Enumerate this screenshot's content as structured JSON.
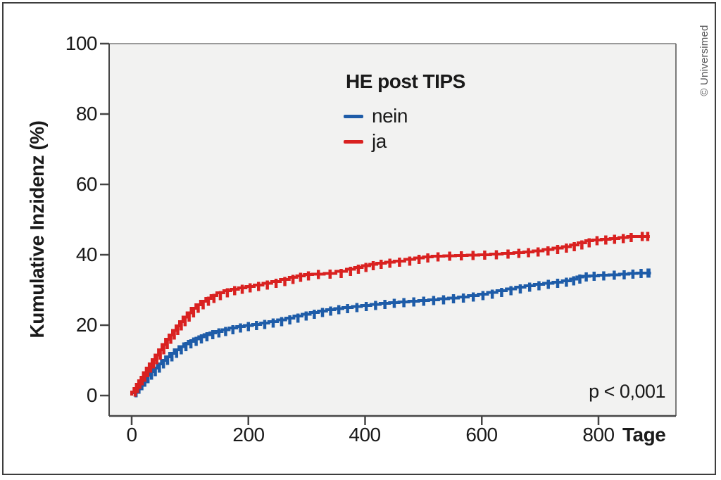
{
  "copyright": "© Universimed",
  "annotations": {
    "p_value": "p < 0,001"
  },
  "legend": {
    "title": "HE post TIPS",
    "items": [
      {
        "label": "nein",
        "color": "#1e5ca8"
      },
      {
        "label": "ja",
        "color": "#d92120"
      }
    ]
  },
  "chart_data": {
    "type": "line",
    "subtype": "kaplan-meier-cumulative-incidence",
    "title": "HE post TIPS",
    "xlabel": "Tage",
    "ylabel": "Kumulative Inzidenz (%)",
    "xlim": [
      0,
      930
    ],
    "ylim": [
      0,
      100
    ],
    "x_ticks": [
      "0",
      "200",
      "400",
      "600",
      "800"
    ],
    "x_tick_values": [
      0,
      200,
      400,
      600,
      800
    ],
    "y_ticks": [
      "100",
      "80",
      "60",
      "40",
      "20",
      "0"
    ],
    "y_tick_values": [
      100,
      80,
      60,
      40,
      20,
      0
    ],
    "grid": false,
    "legend_position": "inside-top-center",
    "plot_background": "#f2f2f1",
    "annotation": "p < 0,001",
    "series": [
      {
        "name": "nein",
        "color": "#1e5ca8",
        "censor_marks": true,
        "x": [
          0,
          5,
          10,
          15,
          20,
          25,
          31,
          37,
          44,
          51,
          58,
          65,
          73,
          81,
          89,
          97,
          106,
          115,
          124,
          134,
          144,
          155,
          167,
          180,
          193,
          207,
          221,
          235,
          250,
          264,
          278,
          292,
          306,
          320,
          334,
          348,
          362,
          378,
          394,
          410,
          426,
          442,
          458,
          475,
          492,
          509,
          526,
          543,
          560,
          577,
          594,
          610,
          626,
          642,
          658,
          674,
          690,
          706,
          722,
          738,
          752,
          763,
          773,
          785,
          800,
          818,
          836,
          852,
          866,
          880,
          890
        ],
        "y": [
          0,
          0.8,
          1.8,
          2.8,
          3.8,
          4.8,
          5.8,
          6.8,
          7.8,
          9,
          10,
          11,
          12,
          13,
          13.9,
          14.7,
          15.4,
          16.1,
          16.7,
          17.3,
          17.8,
          18.2,
          18.7,
          19.2,
          19.6,
          19.9,
          20.2,
          20.6,
          21,
          21.5,
          22,
          22.6,
          23.1,
          23.6,
          24,
          24.4,
          24.7,
          25,
          25.3,
          25.6,
          25.9,
          26.2,
          26.4,
          26.6,
          26.8,
          27,
          27.2,
          27.5,
          27.7,
          28,
          28.4,
          28.8,
          29.3,
          29.8,
          30.3,
          30.8,
          31.2,
          31.6,
          31.9,
          32.2,
          32.6,
          33.1,
          33.7,
          33.9,
          34,
          34.2,
          34.3,
          34.5,
          34.7,
          34.8,
          34.8
        ]
      },
      {
        "name": "ja",
        "color": "#d92120",
        "censor_marks": true,
        "x": [
          0,
          4,
          8,
          12,
          16,
          20,
          25,
          30,
          35,
          40,
          46,
          52,
          58,
          64,
          70,
          76,
          82,
          88,
          95,
          102,
          110,
          118,
          127,
          136,
          146,
          158,
          170,
          183,
          196,
          210,
          225,
          240,
          255,
          270,
          283,
          296,
          310,
          330,
          350,
          368,
          382,
          395,
          408,
          420,
          435,
          450,
          468,
          485,
          500,
          515,
          535,
          555,
          575,
          595,
          615,
          635,
          655,
          672,
          688,
          705,
          722,
          738,
          752,
          765,
          778,
          790,
          805,
          820,
          835,
          850,
          862,
          888
        ],
        "y": [
          0,
          1,
          2,
          3.2,
          4.2,
          5.2,
          6.5,
          7.8,
          9,
          10.2,
          11.5,
          13,
          14.5,
          16,
          17.2,
          18.5,
          19.8,
          21,
          22.3,
          23.5,
          24.8,
          25.8,
          26.8,
          27.6,
          28.4,
          29.2,
          29.8,
          30.2,
          30.6,
          31,
          31.4,
          31.9,
          32.4,
          33,
          33.6,
          34,
          34.4,
          34.5,
          34.7,
          35.3,
          35.9,
          36.4,
          36.9,
          37.3,
          37.6,
          37.9,
          38.2,
          38.7,
          39.1,
          39.4,
          39.6,
          39.7,
          39.8,
          39.9,
          40,
          40.2,
          40.4,
          40.6,
          40.8,
          41.1,
          41.5,
          41.9,
          42.3,
          42.8,
          43.4,
          44,
          44.2,
          44.4,
          44.6,
          44.9,
          45.2,
          45.2
        ]
      }
    ]
  }
}
